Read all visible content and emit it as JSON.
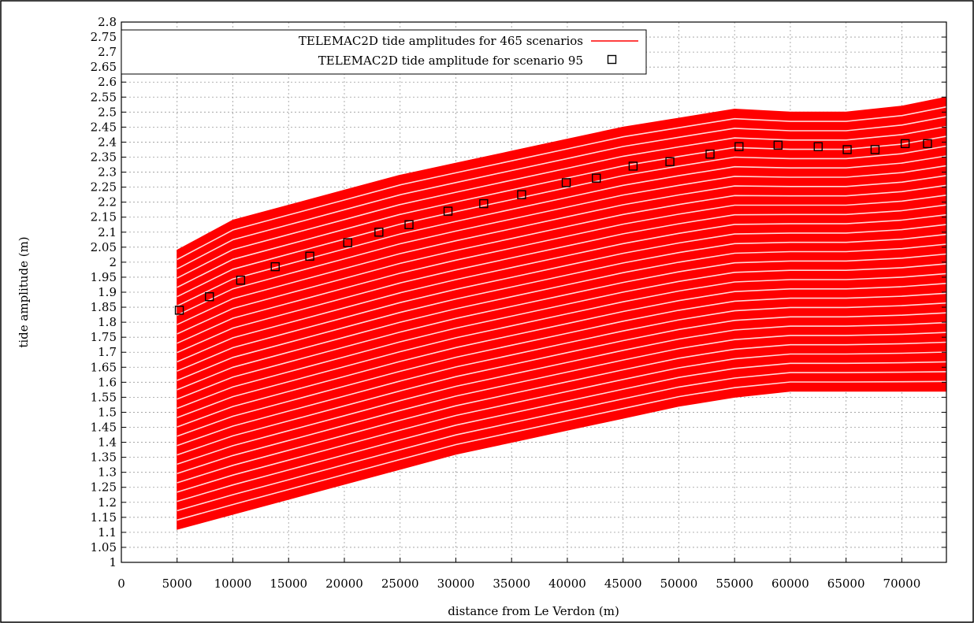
{
  "chart_data": {
    "type": "line",
    "title": "",
    "xlabel": "distance from Le Verdon (m)",
    "ylabel": "tide amplitude (m)",
    "xlim": [
      0,
      74000
    ],
    "ylim": [
      1.0,
      2.8
    ],
    "x_ticks": [
      0,
      5000,
      10000,
      15000,
      20000,
      25000,
      30000,
      35000,
      40000,
      45000,
      50000,
      55000,
      60000,
      65000,
      70000
    ],
    "y_ticks": [
      1,
      1.05,
      1.1,
      1.15,
      1.2,
      1.25,
      1.3,
      1.35,
      1.4,
      1.45,
      1.5,
      1.55,
      1.6,
      1.65,
      1.7,
      1.75,
      1.8,
      1.85,
      1.9,
      1.95,
      2,
      2.05,
      2.1,
      2.15,
      2.2,
      2.25,
      2.3,
      2.35,
      2.4,
      2.45,
      2.5,
      2.55,
      2.6,
      2.65,
      2.7,
      2.75,
      2.8
    ],
    "grid": true,
    "legend_position": "top-left",
    "series": [
      {
        "name": "TELEMAC2D tide amplitudes for 465  scenarios",
        "color": "#ff0000",
        "style": "line",
        "scenario_count": 465,
        "x": [
          5000,
          10000,
          15000,
          20000,
          25000,
          30000,
          35000,
          40000,
          45000,
          50000,
          55000,
          60000,
          65000,
          70000,
          74000
        ],
        "envelope_upper": [
          2.04,
          2.14,
          2.19,
          2.24,
          2.29,
          2.33,
          2.37,
          2.41,
          2.45,
          2.48,
          2.51,
          2.5,
          2.5,
          2.52,
          2.55
        ],
        "envelope_lower": [
          1.11,
          1.16,
          1.21,
          1.26,
          1.31,
          1.36,
          1.4,
          1.44,
          1.48,
          1.52,
          1.55,
          1.57,
          1.57,
          1.57,
          1.57
        ]
      },
      {
        "name": "TELEMAC2D tide amplitude for scenario 95",
        "color": "#000000",
        "style": "square-markers",
        "x": [
          5200,
          7900,
          10700,
          13800,
          16900,
          20300,
          23100,
          25800,
          29300,
          32500,
          35900,
          39900,
          42600,
          45900,
          49200,
          52800,
          55400,
          58900,
          62500,
          65100,
          67600,
          70300,
          72300
        ],
        "y": [
          1.84,
          1.885,
          1.94,
          1.985,
          2.02,
          2.065,
          2.1,
          2.125,
          2.17,
          2.195,
          2.225,
          2.265,
          2.28,
          2.32,
          2.335,
          2.36,
          2.385,
          2.39,
          2.385,
          2.375,
          2.375,
          2.395,
          2.395
        ]
      }
    ]
  }
}
